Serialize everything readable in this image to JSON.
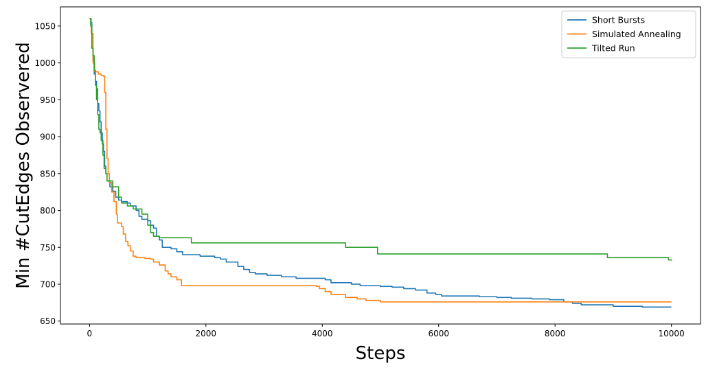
{
  "chart_data": {
    "type": "line",
    "title": "",
    "xlabel": "Steps",
    "ylabel": "Min #CutEdges Observered",
    "xlim": [
      -500,
      10500
    ],
    "ylim": [
      646,
      1076
    ],
    "xticks": [
      0,
      2000,
      4000,
      6000,
      8000,
      10000
    ],
    "yticks": [
      650,
      700,
      750,
      800,
      850,
      900,
      950,
      1000,
      1050
    ],
    "grid": false,
    "legend_position": "top-right",
    "series": [
      {
        "name": "Short Bursts",
        "color": "#1f77b4",
        "points": [
          [
            0,
            1060
          ],
          [
            20,
            1055
          ],
          [
            40,
            1020
          ],
          [
            60,
            1005
          ],
          [
            80,
            985
          ],
          [
            100,
            975
          ],
          [
            120,
            965
          ],
          [
            140,
            945
          ],
          [
            160,
            935
          ],
          [
            180,
            920
          ],
          [
            200,
            905
          ],
          [
            220,
            890
          ],
          [
            240,
            880
          ],
          [
            260,
            860
          ],
          [
            280,
            850
          ],
          [
            300,
            840
          ],
          [
            350,
            832
          ],
          [
            400,
            826
          ],
          [
            450,
            818
          ],
          [
            500,
            814
          ],
          [
            550,
            812
          ],
          [
            650,
            810
          ],
          [
            700,
            806
          ],
          [
            800,
            800
          ],
          [
            850,
            792
          ],
          [
            900,
            788
          ],
          [
            1000,
            786
          ],
          [
            1050,
            780
          ],
          [
            1100,
            776
          ],
          [
            1150,
            765
          ],
          [
            1200,
            760
          ],
          [
            1250,
            750
          ],
          [
            1400,
            748
          ],
          [
            1500,
            744
          ],
          [
            1600,
            740
          ],
          [
            1900,
            738
          ],
          [
            2150,
            736
          ],
          [
            2250,
            734
          ],
          [
            2350,
            730
          ],
          [
            2550,
            724
          ],
          [
            2650,
            720
          ],
          [
            2750,
            716
          ],
          [
            2850,
            714
          ],
          [
            3050,
            712
          ],
          [
            3300,
            710
          ],
          [
            3550,
            708
          ],
          [
            4050,
            706
          ],
          [
            4150,
            702
          ],
          [
            4500,
            700
          ],
          [
            4650,
            698
          ],
          [
            5000,
            697
          ],
          [
            5200,
            696
          ],
          [
            5400,
            694
          ],
          [
            5600,
            692
          ],
          [
            5800,
            688
          ],
          [
            5950,
            686
          ],
          [
            6050,
            684
          ],
          [
            6700,
            683
          ],
          [
            7000,
            682
          ],
          [
            7250,
            681
          ],
          [
            7600,
            680
          ],
          [
            7900,
            679
          ],
          [
            8150,
            676
          ],
          [
            8300,
            674
          ],
          [
            8450,
            672
          ],
          [
            9000,
            670
          ],
          [
            9500,
            669
          ],
          [
            10000,
            669
          ]
        ]
      },
      {
        "name": "Simulated Annealing",
        "color": "#ff7f0e",
        "points": [
          [
            0,
            1060
          ],
          [
            30,
            1040
          ],
          [
            60,
            1000
          ],
          [
            90,
            988
          ],
          [
            150,
            985
          ],
          [
            200,
            983
          ],
          [
            240,
            982
          ],
          [
            260,
            960
          ],
          [
            280,
            910
          ],
          [
            300,
            870
          ],
          [
            320,
            850
          ],
          [
            340,
            838
          ],
          [
            380,
            825
          ],
          [
            420,
            812
          ],
          [
            460,
            795
          ],
          [
            480,
            783
          ],
          [
            550,
            778
          ],
          [
            580,
            768
          ],
          [
            620,
            758
          ],
          [
            660,
            752
          ],
          [
            700,
            745
          ],
          [
            750,
            738
          ],
          [
            800,
            736
          ],
          [
            950,
            735
          ],
          [
            1050,
            734
          ],
          [
            1100,
            730
          ],
          [
            1200,
            726
          ],
          [
            1300,
            718
          ],
          [
            1350,
            714
          ],
          [
            1400,
            710
          ],
          [
            1500,
            706
          ],
          [
            1580,
            698
          ],
          [
            3900,
            697
          ],
          [
            3950,
            694
          ],
          [
            4050,
            690
          ],
          [
            4150,
            686
          ],
          [
            4400,
            682
          ],
          [
            4600,
            680
          ],
          [
            4750,
            678
          ],
          [
            5000,
            676
          ],
          [
            10000,
            676
          ]
        ]
      },
      {
        "name": "Tilted Run",
        "color": "#2ca02c",
        "points": [
          [
            0,
            1060
          ],
          [
            20,
            1050
          ],
          [
            40,
            1020
          ],
          [
            60,
            1010
          ],
          [
            80,
            990
          ],
          [
            100,
            970
          ],
          [
            120,
            950
          ],
          [
            140,
            930
          ],
          [
            160,
            910
          ],
          [
            180,
            905
          ],
          [
            200,
            895
          ],
          [
            230,
            875
          ],
          [
            250,
            857
          ],
          [
            280,
            850
          ],
          [
            300,
            840
          ],
          [
            400,
            832
          ],
          [
            500,
            818
          ],
          [
            550,
            810
          ],
          [
            650,
            806
          ],
          [
            750,
            802
          ],
          [
            900,
            795
          ],
          [
            1000,
            780
          ],
          [
            1050,
            770
          ],
          [
            1100,
            765
          ],
          [
            1200,
            763
          ],
          [
            1750,
            756
          ],
          [
            4400,
            750
          ],
          [
            4950,
            741
          ],
          [
            8900,
            736
          ],
          [
            9950,
            733
          ],
          [
            10000,
            732
          ]
        ]
      }
    ]
  }
}
